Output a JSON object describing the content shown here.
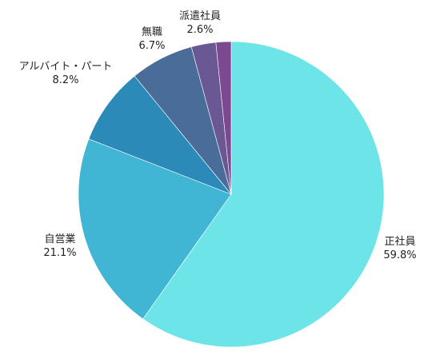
{
  "chart_data": {
    "type": "pie",
    "start_angle_deg": 0,
    "direction": "clockwise",
    "slices": [
      {
        "label": "正社員",
        "value": 59.8,
        "value_text": "59.8%",
        "color": "#6ce4e8"
      },
      {
        "label": "自営業",
        "value": 21.1,
        "value_text": "21.1%",
        "color": "#41b5d4"
      },
      {
        "label": "アルバイト・パート",
        "value": 8.2,
        "value_text": "8.2%",
        "color": "#2b8ab8"
      },
      {
        "label": "無職",
        "value": 6.7,
        "value_text": "6.7%",
        "color": "#4a6c98"
      },
      {
        "label": "派遣社員",
        "value": 2.6,
        "value_text": "2.6%",
        "color": "#6a5894"
      },
      {
        "label": "",
        "value": 1.6,
        "value_text": "",
        "color": "#7c4890"
      }
    ]
  }
}
